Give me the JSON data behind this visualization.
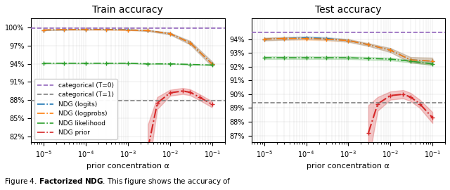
{
  "title_train": "Train accuracy",
  "title_test": "Test accuracy",
  "xlabel": "prior concentration α",
  "alpha_values": [
    1e-05,
    3e-05,
    0.0001,
    0.0003,
    0.001,
    0.003,
    0.01,
    0.03,
    0.1
  ],
  "train_categorical_T0": 99.9,
  "train_categorical_T1": 87.9,
  "train_logits_mean": [
    99.6,
    99.65,
    99.7,
    99.7,
    99.65,
    99.5,
    99.0,
    97.5,
    94.0
  ],
  "train_logits_std": [
    0.05,
    0.05,
    0.05,
    0.05,
    0.05,
    0.1,
    0.15,
    0.3,
    0.4
  ],
  "train_logprobs_mean": [
    99.6,
    99.65,
    99.65,
    99.65,
    99.6,
    99.5,
    99.0,
    97.5,
    94.0
  ],
  "train_logprobs_std": [
    0.05,
    0.05,
    0.05,
    0.05,
    0.05,
    0.1,
    0.15,
    0.3,
    0.4
  ],
  "train_likelihood_mean": [
    94.1,
    94.1,
    94.1,
    94.1,
    94.1,
    94.0,
    94.0,
    93.9,
    93.8
  ],
  "train_likelihood_std": [
    0.05,
    0.05,
    0.05,
    0.05,
    0.05,
    0.05,
    0.05,
    0.05,
    0.05
  ],
  "train_prior_alpha": [
    0.003,
    0.005,
    0.01,
    0.02,
    0.03,
    0.05,
    0.1
  ],
  "train_prior_mean": [
    80.0,
    87.5,
    89.2,
    89.5,
    89.3,
    88.5,
    87.3
  ],
  "train_prior_std": [
    4.0,
    1.0,
    0.5,
    0.5,
    0.5,
    0.5,
    0.5
  ],
  "test_categorical_T0": 94.5,
  "test_categorical_T1": 89.4,
  "test_logits_mean": [
    94.0,
    94.05,
    94.1,
    94.05,
    93.9,
    93.6,
    93.2,
    92.5,
    92.4
  ],
  "test_logits_std": [
    0.1,
    0.1,
    0.1,
    0.1,
    0.1,
    0.1,
    0.15,
    0.2,
    0.25
  ],
  "test_logprobs_mean": [
    94.0,
    94.05,
    94.05,
    94.0,
    93.9,
    93.6,
    93.2,
    92.5,
    92.4
  ],
  "test_logprobs_std": [
    0.1,
    0.1,
    0.1,
    0.1,
    0.1,
    0.1,
    0.15,
    0.2,
    0.25
  ],
  "test_likelihood_mean": [
    92.65,
    92.65,
    92.65,
    92.65,
    92.65,
    92.6,
    92.55,
    92.4,
    92.2
  ],
  "test_likelihood_std": [
    0.1,
    0.1,
    0.1,
    0.1,
    0.1,
    0.1,
    0.1,
    0.1,
    0.1
  ],
  "test_prior_alpha": [
    0.003,
    0.005,
    0.01,
    0.02,
    0.03,
    0.05,
    0.1
  ],
  "test_prior_mean": [
    87.2,
    89.3,
    89.9,
    90.0,
    89.8,
    89.3,
    88.3
  ],
  "test_prior_std": [
    2.0,
    0.5,
    0.3,
    0.3,
    0.3,
    0.3,
    0.4
  ],
  "color_T0": "#9467bd",
  "color_T1": "#808080",
  "color_logits": "#1f77b4",
  "color_logprobs": "#ff7f0e",
  "color_likelihood": "#2ca02c",
  "color_prior": "#d62728",
  "train_ylim": [
    81.0,
    101.5
  ],
  "train_yticks": [
    82,
    85,
    88,
    91,
    94,
    97,
    100
  ],
  "test_ylim": [
    86.5,
    95.5
  ],
  "test_yticks": [
    87,
    88,
    89,
    90,
    91,
    92,
    93,
    94
  ]
}
